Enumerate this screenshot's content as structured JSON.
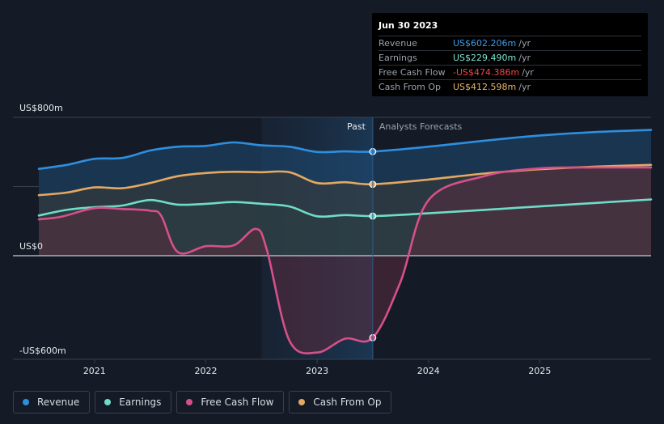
{
  "tooltip": {
    "date": "Jun 30 2023",
    "rows": [
      {
        "label": "Revenue",
        "value": "US$602.206m",
        "unit": "/yr",
        "color": "#3f9be8"
      },
      {
        "label": "Earnings",
        "value": "US$229.490m",
        "unit": "/yr",
        "color": "#7de3cf"
      },
      {
        "label": "Free Cash Flow",
        "value": "-US$474.386m",
        "unit": "/yr",
        "color": "#f0464a"
      },
      {
        "label": "Cash From Op",
        "value": "US$412.598m",
        "unit": "/yr",
        "color": "#e8b56a"
      }
    ]
  },
  "legend": [
    {
      "label": "Revenue",
      "color": "#2d8fe0"
    },
    {
      "label": "Earnings",
      "color": "#6fdcc8"
    },
    {
      "label": "Free Cash Flow",
      "color": "#d6508a"
    },
    {
      "label": "Cash From Op",
      "color": "#e5a862"
    }
  ],
  "chart_data": {
    "type": "line",
    "y_labels": [
      "US$800m",
      "US$0",
      "-US$600m"
    ],
    "ylim": [
      -600,
      800
    ],
    "xlim": [
      2020.5,
      2026.0
    ],
    "x_ticks": [
      {
        "label": "2021",
        "value": 2021
      },
      {
        "label": "2022",
        "value": 2022
      },
      {
        "label": "2023",
        "value": 2023
      },
      {
        "label": "2024",
        "value": 2024
      },
      {
        "label": "2025",
        "value": 2025
      }
    ],
    "past_label": "Past",
    "forecast_label": "Analysts Forecasts",
    "past_start": 2022.5,
    "past_end": 2023.5,
    "series": [
      {
        "name": "Revenue",
        "color": "#2d8fe0",
        "fill": "#1f4a73",
        "points": [
          [
            2020.5,
            502
          ],
          [
            2020.75,
            525
          ],
          [
            2021.0,
            560
          ],
          [
            2021.25,
            565
          ],
          [
            2021.5,
            608
          ],
          [
            2021.75,
            630
          ],
          [
            2022.0,
            635
          ],
          [
            2022.25,
            655
          ],
          [
            2022.5,
            638
          ],
          [
            2022.75,
            630
          ],
          [
            2023.0,
            600
          ],
          [
            2023.25,
            603
          ],
          [
            2023.5,
            602
          ],
          [
            2024.0,
            630
          ],
          [
            2024.5,
            665
          ],
          [
            2025.0,
            695
          ],
          [
            2025.5,
            715
          ],
          [
            2026.0,
            727
          ]
        ]
      },
      {
        "name": "Cash From Op",
        "color": "#e5a862",
        "fill": "#3b3a36",
        "points": [
          [
            2020.5,
            350
          ],
          [
            2020.75,
            365
          ],
          [
            2021.0,
            395
          ],
          [
            2021.25,
            390
          ],
          [
            2021.5,
            420
          ],
          [
            2021.75,
            460
          ],
          [
            2022.0,
            478
          ],
          [
            2022.25,
            485
          ],
          [
            2022.5,
            483
          ],
          [
            2022.75,
            483
          ],
          [
            2023.0,
            420
          ],
          [
            2023.25,
            425
          ],
          [
            2023.5,
            413
          ],
          [
            2024.0,
            440
          ],
          [
            2024.5,
            475
          ],
          [
            2025.0,
            500
          ],
          [
            2025.5,
            515
          ],
          [
            2026.0,
            525
          ]
        ]
      },
      {
        "name": "Earnings",
        "color": "#6fdcc8",
        "fill": "#2c3e41",
        "points": [
          [
            2020.5,
            232
          ],
          [
            2020.75,
            265
          ],
          [
            2021.0,
            280
          ],
          [
            2021.25,
            290
          ],
          [
            2021.5,
            322
          ],
          [
            2021.75,
            295
          ],
          [
            2022.0,
            300
          ],
          [
            2022.25,
            310
          ],
          [
            2022.5,
            300
          ],
          [
            2022.75,
            285
          ],
          [
            2023.0,
            228
          ],
          [
            2023.25,
            235
          ],
          [
            2023.5,
            229
          ],
          [
            2024.0,
            245
          ],
          [
            2024.5,
            265
          ],
          [
            2025.0,
            285
          ],
          [
            2025.5,
            305
          ],
          [
            2026.0,
            325
          ]
        ]
      },
      {
        "name": "Free Cash Flow",
        "color": "#d6508a",
        "fill": "#5a2b3e",
        "points": [
          [
            2020.5,
            210
          ],
          [
            2020.7,
            225
          ],
          [
            2021.0,
            275
          ],
          [
            2021.25,
            270
          ],
          [
            2021.5,
            260
          ],
          [
            2021.6,
            230
          ],
          [
            2021.75,
            20
          ],
          [
            2022.0,
            55
          ],
          [
            2022.25,
            60
          ],
          [
            2022.45,
            155
          ],
          [
            2022.55,
            30
          ],
          [
            2022.75,
            -490
          ],
          [
            2023.0,
            -560
          ],
          [
            2023.25,
            -480
          ],
          [
            2023.5,
            -474
          ],
          [
            2023.75,
            -150
          ],
          [
            2024.0,
            320
          ],
          [
            2024.5,
            460
          ],
          [
            2025.0,
            505
          ],
          [
            2025.5,
            510
          ],
          [
            2026.0,
            510
          ]
        ]
      }
    ]
  }
}
